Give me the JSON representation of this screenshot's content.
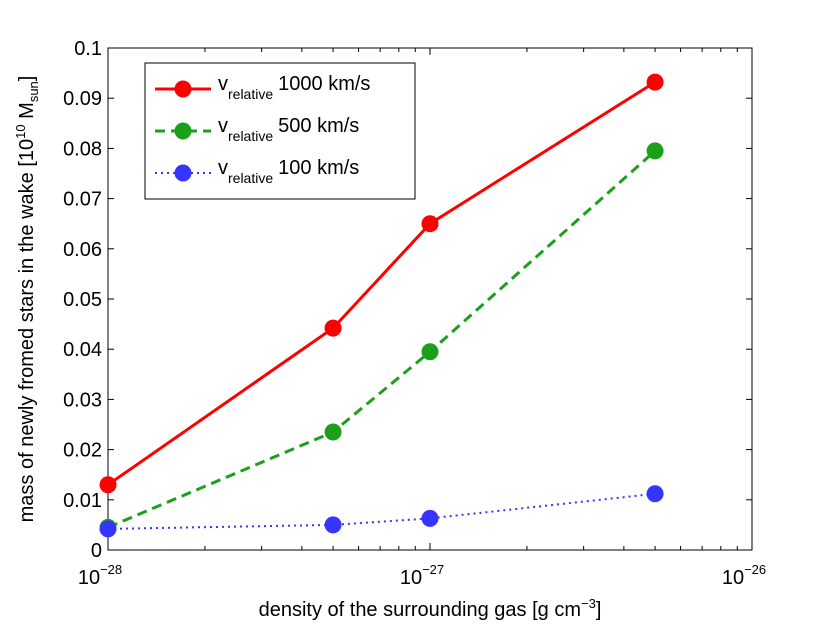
{
  "chart_data": {
    "type": "line",
    "xscale": "log",
    "x": [
      1e-28,
      5e-28,
      1e-27,
      5e-27
    ],
    "xlim": [
      1e-28,
      1e-26
    ],
    "ylim": [
      0,
      0.1
    ],
    "xlabel": {
      "main": "density of the surrounding gas [g cm",
      "sup": "−3",
      "close": "]"
    },
    "ylabel": {
      "main": "mass of newly fromed stars in the wake [10",
      "sup": "10",
      "mid": " M",
      "sub": "sun",
      "close": "]"
    },
    "yticks": [
      "0",
      "0.01",
      "0.02",
      "0.03",
      "0.04",
      "0.05",
      "0.06",
      "0.07",
      "0.08",
      "0.09",
      "0.1"
    ],
    "xticks": [
      {
        "base": "10",
        "exp": "−28"
      },
      {
        "base": "10",
        "exp": "−27"
      },
      {
        "base": "10",
        "exp": "−26"
      }
    ],
    "series": [
      {
        "name": "v relative 1000 km/s",
        "symbol": "v",
        "sub": "relative",
        "value": "1000 km/s",
        "color": "#ff0000",
        "dash": "solid",
        "values": [
          0.013,
          0.0442,
          0.065,
          0.0932
        ]
      },
      {
        "name": "v relative 500 km/s",
        "symbol": "v",
        "sub": "relative",
        "value": "500 km/s",
        "color": "#1ca01c",
        "dash": "dashed",
        "values": [
          0.0045,
          0.0235,
          0.0395,
          0.0795
        ]
      },
      {
        "name": "v relative 100 km/s",
        "symbol": "v",
        "sub": "relative",
        "value": "100 km/s",
        "color": "#3535ff",
        "dash": "dotted",
        "values": [
          0.0042,
          0.005,
          0.0063,
          0.0112
        ]
      }
    ],
    "legend_position": "top-left",
    "grid": false
  }
}
